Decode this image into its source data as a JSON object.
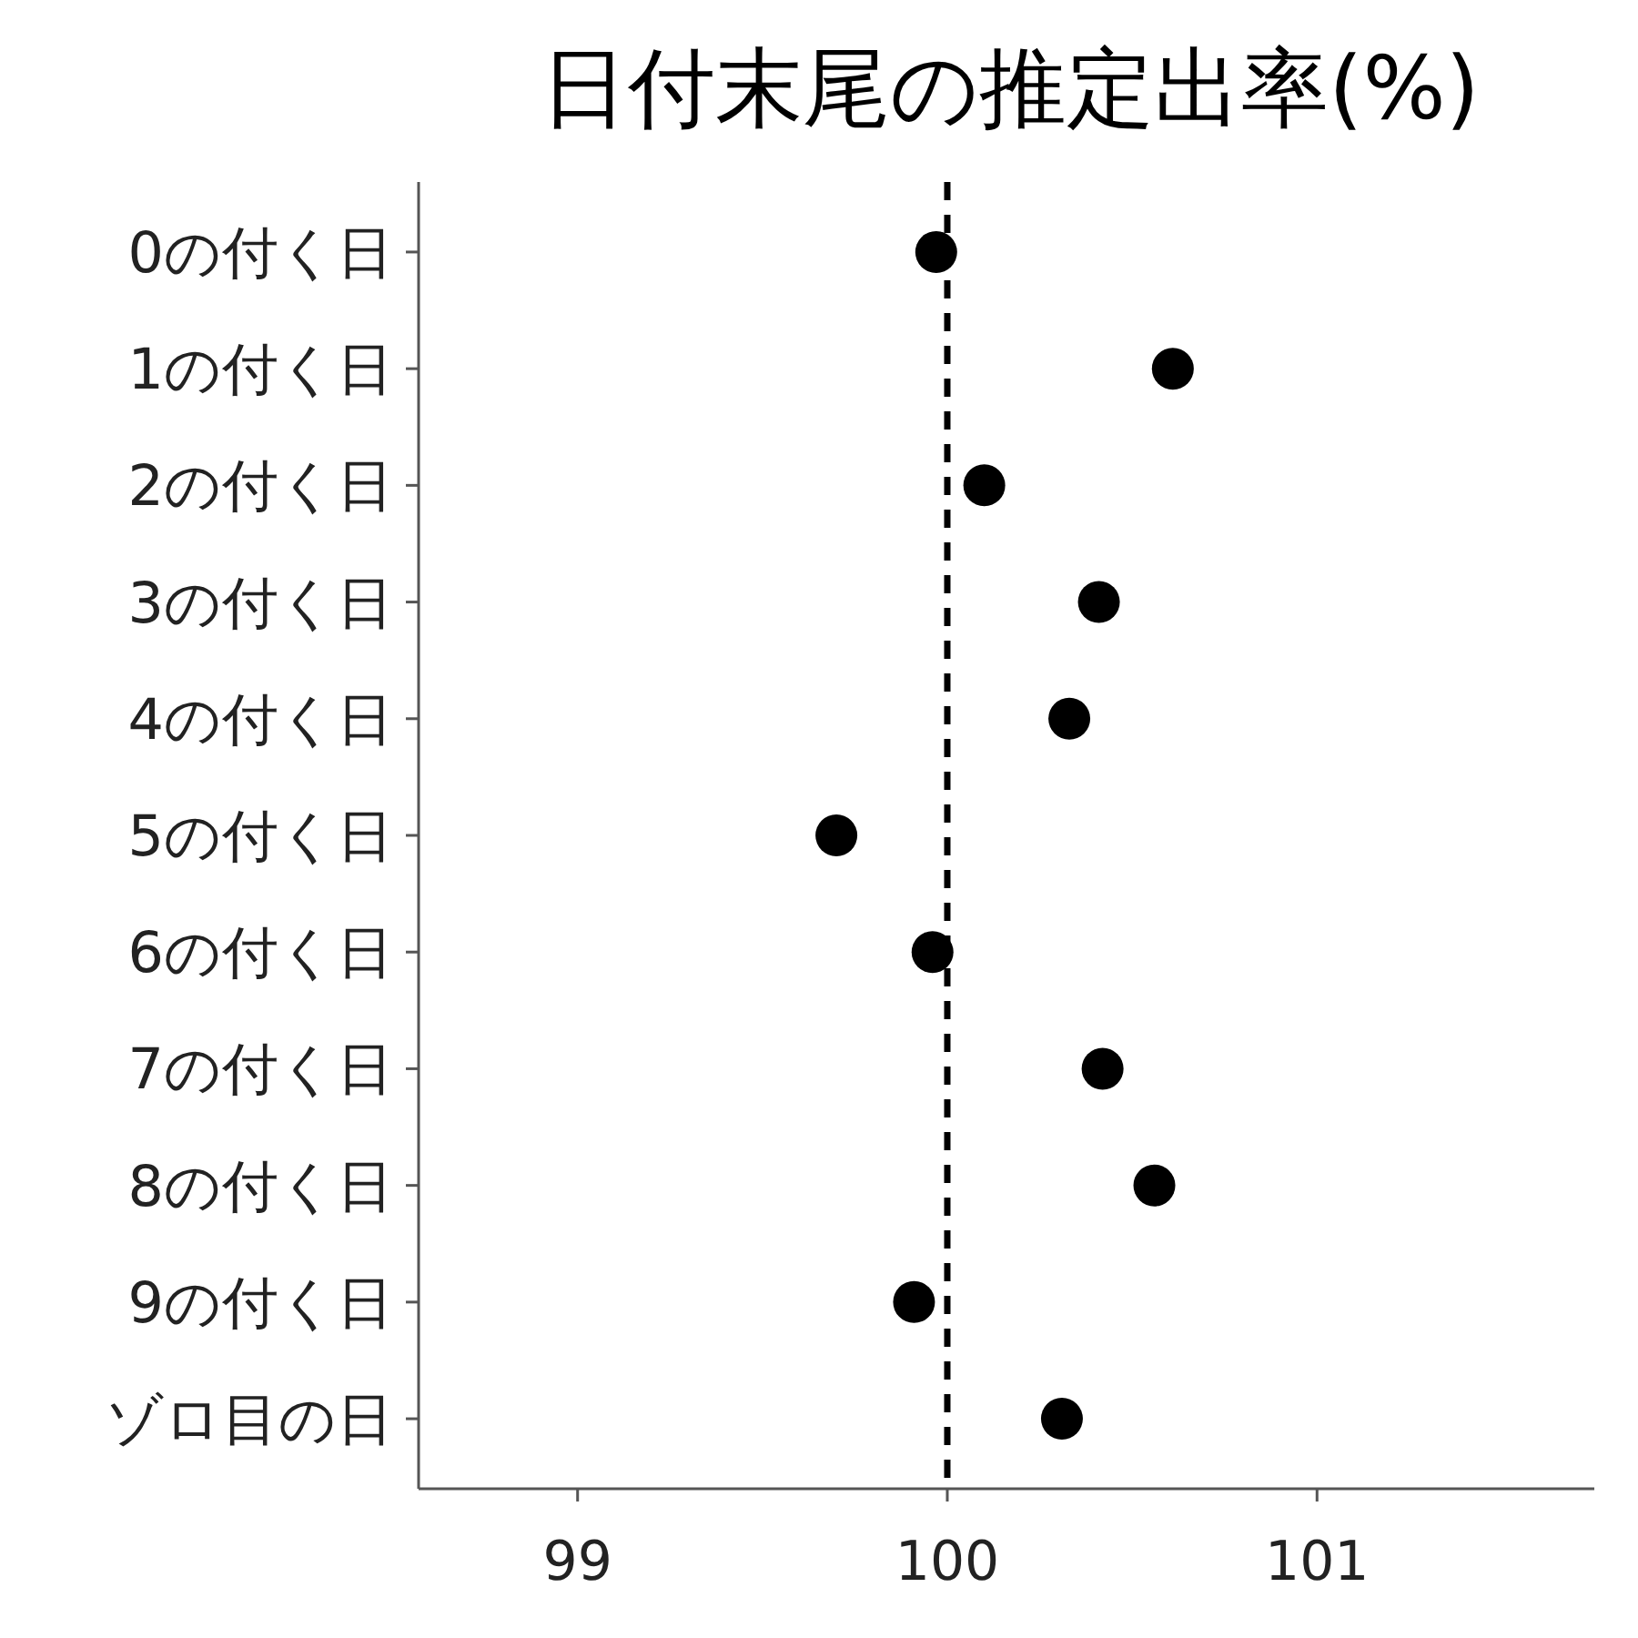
{
  "chart_data": {
    "type": "scatter",
    "title": "日付末尾の推定出率(%)",
    "orientation": "horizontal",
    "categories": [
      "0の付く日",
      "1の付く日",
      "2の付く日",
      "3の付く日",
      "4の付く日",
      "5の付く日",
      "6の付く日",
      "7の付く日",
      "8の付く日",
      "9の付く日",
      "ゾロ目の日"
    ],
    "series": [
      {
        "color": "#000000",
        "values": [
          99.97,
          100.61,
          100.1,
          100.41,
          100.33,
          99.7,
          99.96,
          100.42,
          100.56,
          99.91,
          100.31
        ]
      }
    ],
    "xlim": [
      98.57,
      101.75
    ],
    "xticks": [
      99,
      100,
      101
    ],
    "ref_lines": [
      {
        "axis": "x",
        "value": 100,
        "color": "#000000",
        "line_style": "dashed"
      }
    ],
    "marker": "circle",
    "grid": false
  }
}
